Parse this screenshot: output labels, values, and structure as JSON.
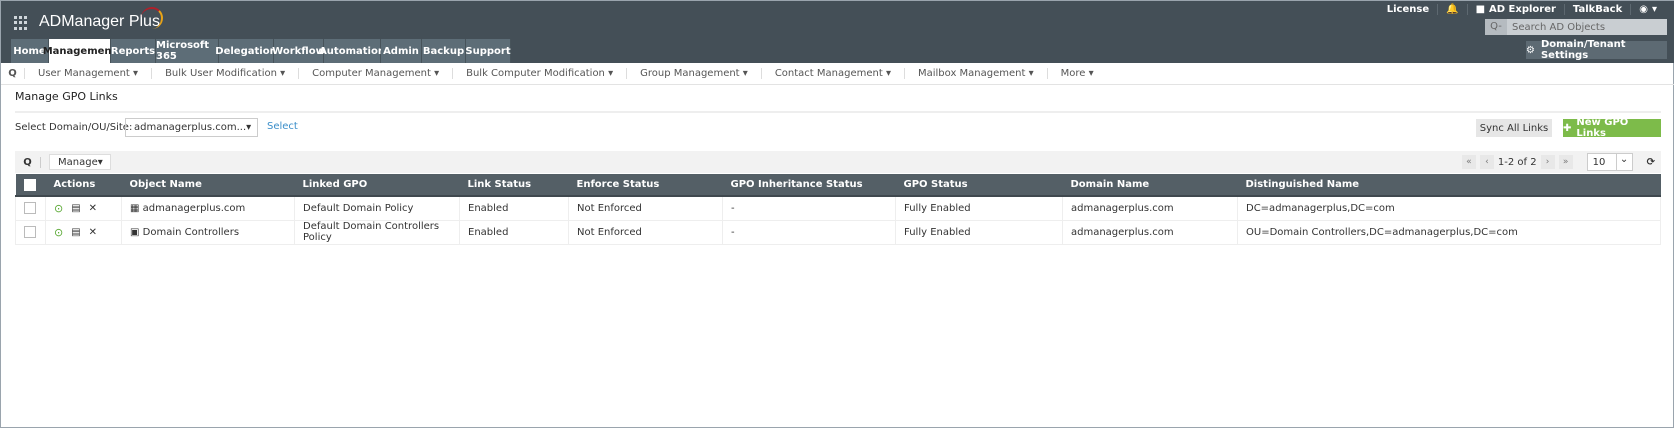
{
  "app": {
    "title": "ADManager Plus"
  },
  "toplinks": {
    "license": "License",
    "ad_explorer": "AD Explorer",
    "talkback": "TalkBack"
  },
  "search": {
    "placeholder": "Search AD Objects"
  },
  "settings_button": "Domain/Tenant Settings",
  "tabs": [
    {
      "label": "Home"
    },
    {
      "label": "Management",
      "active": true
    },
    {
      "label": "Reports"
    },
    {
      "label": "Microsoft 365"
    },
    {
      "label": "Delegation"
    },
    {
      "label": "Workflow"
    },
    {
      "label": "Automation"
    },
    {
      "label": "Admin"
    },
    {
      "label": "Backup"
    },
    {
      "label": "Support"
    }
  ],
  "subnav": [
    "User Management",
    "Bulk User Modification",
    "Computer Management",
    "Bulk Computer Modification",
    "Group Management",
    "Contact Management",
    "Mailbox Management",
    "More"
  ],
  "page": {
    "title": "Manage GPO Links",
    "select_label": "Select Domain/OU/Site:",
    "select_value": "admanagerplus.com...",
    "select_link": "Select",
    "sync": "Sync All Links",
    "new": "New GPO Links"
  },
  "toolbar": {
    "manage": "Manage",
    "range": "1-2 of 2",
    "page_size": "10"
  },
  "table": {
    "headers": [
      "Actions",
      "Object Name",
      "Linked GPO",
      "Link Status",
      "Enforce Status",
      "GPO Inheritance Status",
      "GPO Status",
      "Domain Name",
      "Distinguished Name"
    ],
    "rows": [
      {
        "object": "admanagerplus.com",
        "object_icon": "domain-icon",
        "gpo": "Default Domain Policy",
        "link": "Enabled",
        "enforce": "Not Enforced",
        "inherit": "-",
        "status": "Fully Enabled",
        "domain": "admanagerplus.com",
        "dn": "DC=admanagerplus,DC=com"
      },
      {
        "object": "Domain Controllers",
        "object_icon": "ou-icon",
        "gpo": "Default Domain Controllers Policy",
        "link": "Enabled",
        "enforce": "Not Enforced",
        "inherit": "-",
        "status": "Fully Enabled",
        "domain": "admanagerplus.com",
        "dn": "OU=Domain Controllers,DC=admanagerplus,DC=com"
      }
    ]
  },
  "colors": {
    "header": "#444f57",
    "tab": "#5d6d77",
    "accent_green": "#7dbb4a",
    "link": "#3a8ec9"
  }
}
